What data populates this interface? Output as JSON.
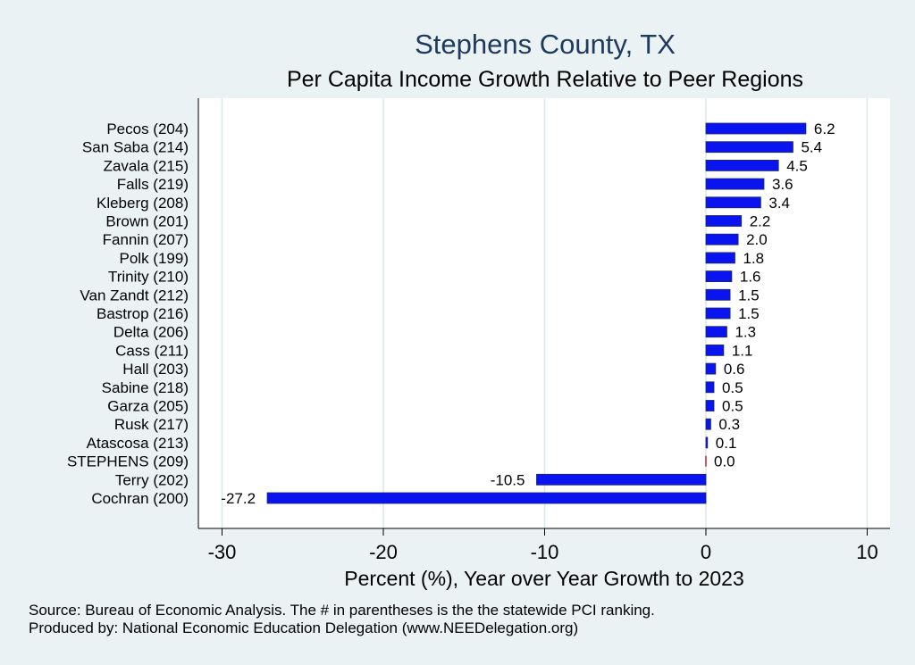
{
  "chart_data": {
    "type": "bar",
    "orientation": "horizontal",
    "title": "Stephens County, TX",
    "subtitle": "Per Capita Income Growth Relative to Peer Regions",
    "xlabel": "Percent (%), Year over Year Growth to 2023",
    "xlim": [
      -32,
      11.5
    ],
    "xticks": [
      -30,
      -20,
      -10,
      0,
      10
    ],
    "xtick_labels": [
      "-30",
      "-20",
      "-10",
      "0",
      "10"
    ],
    "grid": true,
    "categories": [
      "Pecos (204)",
      "San Saba (214)",
      "Zavala (215)",
      "Falls (219)",
      "Kleberg (208)",
      "Brown (201)",
      "Fannin (207)",
      "Polk (199)",
      "Trinity (210)",
      "Van Zandt (212)",
      "Bastrop (216)",
      "Delta (206)",
      "Cass (211)",
      "Hall (203)",
      "Sabine (218)",
      "Garza (205)",
      "Rusk (217)",
      "Atascosa (213)",
      "STEPHENS (209)",
      "Terry (202)",
      "Cochran (200)"
    ],
    "values": [
      6.2,
      5.4,
      4.5,
      3.6,
      3.4,
      2.2,
      2.0,
      1.8,
      1.6,
      1.5,
      1.5,
      1.3,
      1.1,
      0.6,
      0.5,
      0.5,
      0.3,
      0.1,
      0.0,
      -10.5,
      -27.2
    ],
    "value_labels": [
      "6.2",
      "5.4",
      "4.5",
      "3.6",
      "3.4",
      "2.2",
      "2.0",
      "1.8",
      "1.6",
      "1.5",
      "1.5",
      "1.3",
      "1.1",
      "0.6",
      "0.5",
      "0.5",
      "0.3",
      "0.1",
      "0.0",
      "-10.5",
      "-27.2"
    ],
    "highlight_category": "STEPHENS (209)",
    "colors": {
      "bar": "#0a14f0",
      "bar_stroke": "#1a2a60",
      "highlight": "#c0393b",
      "grid": "#dbe8ea",
      "background": "#eaf2f3",
      "plot_background": "#ffffff"
    }
  },
  "notes": {
    "source": "Source: Bureau of Economic Analysis. The # in parentheses is the the statewide PCI ranking.",
    "produced_by": "Produced by: National Economic Education Delegation (www.NEEDelegation.org)"
  }
}
